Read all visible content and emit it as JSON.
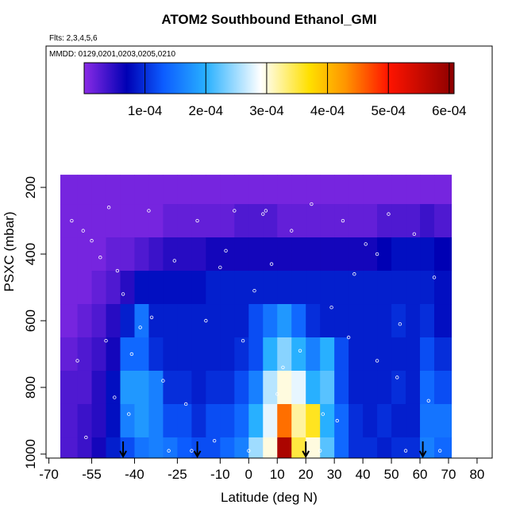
{
  "chart_data": {
    "type": "heatmap",
    "title": "ATOM2 Southbound Ethanol_GMI",
    "annotations": [
      "Flts: 2,3,4,5,6",
      "MMDD: 0129,0201,0203,0205,0210"
    ],
    "x_label": "Latitude (deg N)",
    "y_label": "PSXC (mbar)",
    "xlim": [
      -71,
      85.3
    ],
    "ylim": [
      -224,
      1012
    ],
    "xticks": [
      -70,
      -55,
      -40,
      -25,
      -10,
      0,
      10,
      20,
      30,
      40,
      50,
      60,
      70,
      80
    ],
    "yticks": [
      200,
      400,
      600,
      800,
      1000
    ],
    "x_edges": [
      -66,
      -60,
      -55,
      -50,
      -45,
      -40,
      -35,
      -30,
      -25,
      -20,
      -15,
      -10,
      -5,
      0,
      5,
      10,
      15,
      20,
      25,
      30,
      35,
      40,
      45,
      50,
      55,
      60,
      65,
      71
    ],
    "y_edges": [
      162,
      250,
      350,
      450,
      550,
      650,
      750,
      850,
      950,
      1010
    ],
    "z": [
      [
        1e-05,
        1e-05,
        1e-05,
        1e-05,
        1e-05,
        1e-05,
        1e-05,
        1e-05,
        1e-05,
        1e-05,
        1e-05,
        1e-05,
        1e-05,
        1e-05,
        1e-05,
        1e-05,
        1e-05,
        1e-05,
        1e-05,
        1e-05,
        1e-05,
        1e-05,
        1e-05,
        1e-05,
        1e-05,
        1e-05,
        1e-05
      ],
      [
        1e-05,
        1e-05,
        1e-05,
        1e-05,
        1e-05,
        1e-05,
        1e-05,
        2e-05,
        2e-05,
        2e-05,
        2e-05,
        2e-05,
        3e-05,
        3e-05,
        3e-05,
        2e-05,
        2e-05,
        2e-05,
        2e-05,
        2e-05,
        2e-05,
        2e-05,
        3e-05,
        3e-05,
        3e-05,
        4e-05,
        3e-05
      ],
      [
        1e-05,
        1e-05,
        1e-05,
        2e-05,
        2e-05,
        3e-05,
        4e-05,
        5e-05,
        5e-05,
        5e-05,
        6e-05,
        6e-05,
        6e-05,
        6e-05,
        6e-05,
        6e-05,
        6e-05,
        6e-05,
        6e-05,
        6e-05,
        6e-05,
        6e-05,
        7e-05,
        8e-05,
        8e-05,
        8e-05,
        7e-05
      ],
      [
        1e-05,
        1e-05,
        2e-05,
        3e-05,
        5e-05,
        8e-05,
        8e-05,
        8e-05,
        8e-05,
        8e-05,
        9e-05,
        9e-05,
        9e-05,
        9e-05,
        9e-05,
        9e-05,
        9e-05,
        9e-05,
        9e-05,
        9e-05,
        9e-05,
        9e-05,
        9e-05,
        9e-05,
        9e-05,
        9e-05,
        8e-05
      ],
      [
        1e-05,
        2e-05,
        3e-05,
        5e-05,
        9e-05,
        0.00015,
        9e-05,
        9e-05,
        9e-05,
        9e-05,
        9e-05,
        9e-05,
        9e-05,
        0.00012,
        0.00015,
        0.00018,
        0.00014,
        0.0001,
        9e-05,
        9e-05,
        9e-05,
        9e-05,
        9e-05,
        0.0001,
        9e-05,
        0.0001,
        8e-05
      ],
      [
        2e-05,
        3e-05,
        4e-05,
        6e-05,
        0.00014,
        0.00014,
        0.0001,
        9e-05,
        9e-05,
        9e-05,
        9e-05,
        9e-05,
        0.0001,
        0.00012,
        0.0002,
        0.00024,
        0.0002,
        0.00016,
        0.0002,
        0.00012,
        9e-05,
        9e-05,
        9e-05,
        9e-05,
        9e-05,
        0.00012,
        0.0001
      ],
      [
        3e-05,
        3e-05,
        5e-05,
        8e-05,
        0.00018,
        0.00018,
        0.00016,
        0.0001,
        0.0001,
        9e-05,
        0.0001,
        0.0001,
        0.00012,
        0.00016,
        0.00026,
        0.0003,
        0.00028,
        0.0002,
        0.00022,
        0.00012,
        9e-05,
        9e-05,
        9e-05,
        0.0001,
        9e-05,
        0.00014,
        0.00012
      ],
      [
        3e-05,
        4e-05,
        5e-05,
        8e-05,
        0.00016,
        0.00018,
        0.00016,
        0.00012,
        0.00012,
        0.0001,
        0.00012,
        0.00012,
        0.00014,
        0.0002,
        0.00028,
        0.00045,
        0.00032,
        0.00036,
        0.0002,
        0.00014,
        0.0001,
        9e-05,
        0.0001,
        9e-05,
        9e-05,
        0.00015,
        0.00015
      ],
      [
        3e-05,
        4e-05,
        6e-05,
        9e-05,
        0.00012,
        0.00015,
        0.00016,
        0.00015,
        0.00013,
        0.00012,
        0.00012,
        0.00014,
        0.00016,
        0.00025,
        0.0003,
        0.00058,
        0.00035,
        0.0003,
        0.00022,
        0.00014,
        0.0001,
        0.0001,
        9e-05,
        0.0001,
        0.0001,
        0.00016,
        0.00014
      ]
    ],
    "colorscale": [
      [
        0,
        "#8a2be6"
      ],
      [
        7e-05,
        "#0000b4"
      ],
      [
        0.00013,
        "#0c5cff"
      ],
      [
        0.0002,
        "#28b0ff"
      ],
      [
        0.00029,
        "#ffffff"
      ],
      [
        0.00037,
        "#ffe000"
      ],
      [
        0.00043,
        "#ff9400"
      ],
      [
        0.0005,
        "#ff1400"
      ],
      [
        0.00061,
        "#8c0000"
      ]
    ],
    "colorbar_lim": [
      0,
      0.000608
    ],
    "colorbar_ticks": [
      {
        "value": 0.0001,
        "label": "1e-04"
      },
      {
        "value": 0.0002,
        "label": "2e-04"
      },
      {
        "value": 0.0003,
        "label": "3e-04"
      },
      {
        "value": 0.0004,
        "label": "4e-04"
      },
      {
        "value": 0.0005,
        "label": "5e-04"
      },
      {
        "value": 0.0006,
        "label": "6e-04"
      }
    ],
    "obs": {
      "x": [
        -67,
        -62,
        -58,
        -55,
        -52,
        -49,
        -46,
        -44,
        -41,
        -38,
        -35,
        -30,
        -26,
        -22,
        -18,
        -15,
        -12,
        -8,
        -5,
        -2,
        2,
        5,
        8,
        12,
        15,
        18,
        22,
        26,
        29,
        33,
        37,
        41,
        45,
        49,
        53,
        58,
        63,
        67,
        -60,
        -50,
        -42,
        -34,
        -20,
        -10,
        0,
        10,
        25,
        35,
        45,
        55,
        65,
        -57,
        -47,
        -28,
        6,
        31,
        52
      ],
      "y": [
        260,
        300,
        330,
        360,
        410,
        260,
        450,
        520,
        700,
        620,
        270,
        780,
        420,
        850,
        300,
        600,
        960,
        390,
        270,
        660,
        510,
        280,
        430,
        740,
        330,
        690,
        250,
        880,
        560,
        300,
        460,
        370,
        720,
        280,
        610,
        340,
        840,
        990,
        720,
        660,
        880,
        590,
        990,
        440,
        990,
        820,
        990,
        650,
        400,
        990,
        470,
        950,
        830,
        990,
        270,
        900,
        770
      ]
    },
    "arrows": [
      -44,
      -18,
      20,
      61
    ]
  }
}
